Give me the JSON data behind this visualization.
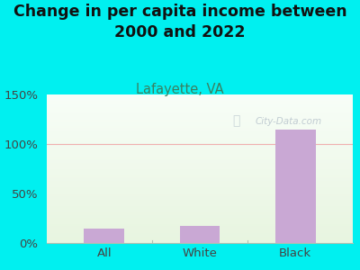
{
  "title": "Change in per capita income between\n2000 and 2022",
  "subtitle": "Lafayette, VA",
  "categories": [
    "All",
    "White",
    "Black"
  ],
  "values": [
    15,
    17,
    115
  ],
  "bar_color": "#c9a8d4",
  "background_color": "#00f0f0",
  "plot_bg_color_top": "#f8fef8",
  "plot_bg_color_bottom": "#e8f5e0",
  "title_fontsize": 12.5,
  "subtitle_fontsize": 10.5,
  "tick_fontsize": 9.5,
  "ylim": [
    0,
    150
  ],
  "yticks": [
    0,
    50,
    100,
    150
  ],
  "ytick_labels": [
    "0%",
    "50%",
    "100%",
    "150%"
  ],
  "hline_color": "#f0b0b0",
  "subtitle_color": "#3a8060",
  "watermark_text": "City-Data.com",
  "watermark_color": "#b8c4cc",
  "separator_color": "#b0c0b0"
}
